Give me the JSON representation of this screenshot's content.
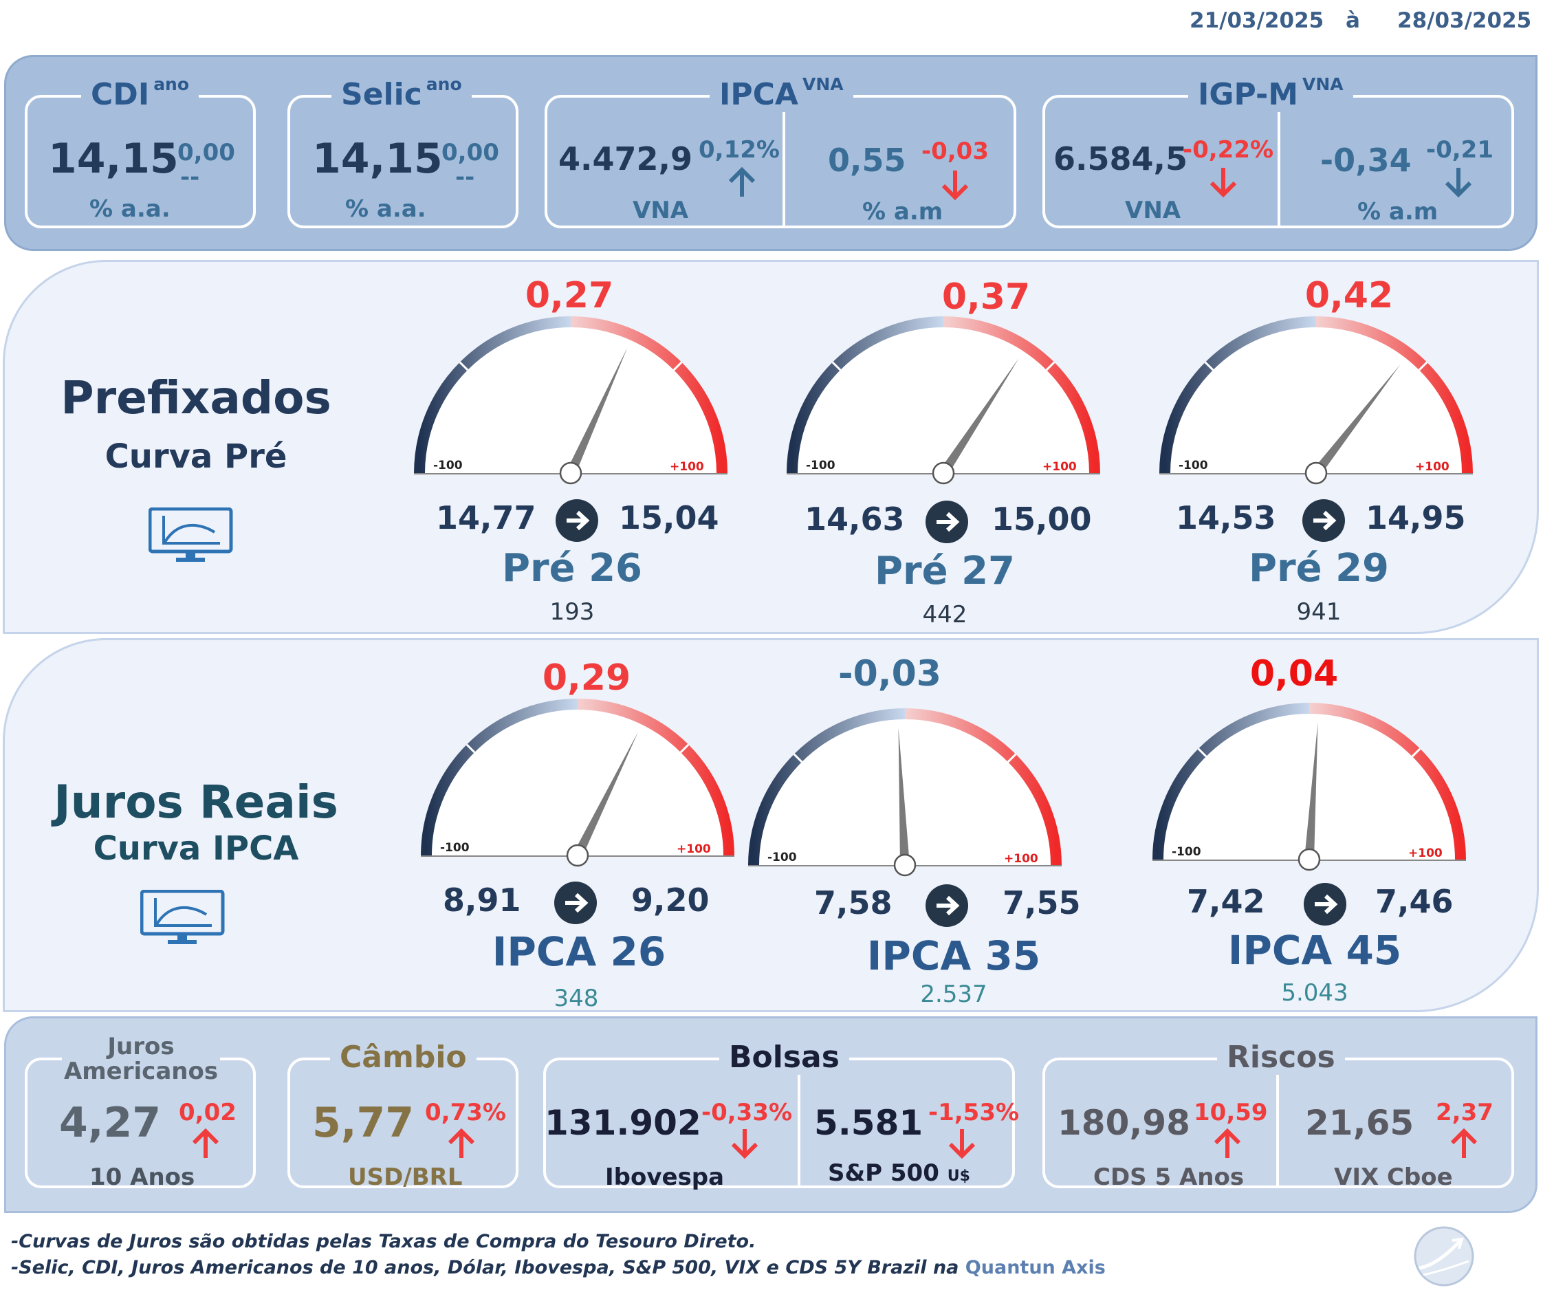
{
  "header": {
    "date_from": "21/03/2025",
    "date_sep": "à",
    "date_to": "28/03/2025"
  },
  "top": {
    "cdi": {
      "label": "CDI",
      "sup": "ano",
      "value": "14,15",
      "change": "0,00",
      "dash": "--",
      "unit": "% a.a."
    },
    "selic": {
      "label": "Selic",
      "sup": "ano",
      "value": "14,15",
      "change": "0,00",
      "dash": "--",
      "unit": "% a.a."
    },
    "ipca": {
      "label": "IPCA",
      "sup": "VNA",
      "vna_value": "4.472,9",
      "vna_change": "0,12%",
      "vna_label": "VNA",
      "am_value": "0,55",
      "am_change": "-0,03",
      "am_label": "% a.m"
    },
    "igpm": {
      "label": "IGP-M",
      "sup": "VNA",
      "vna_value": "6.584,5",
      "vna_change": "-0,22%",
      "vna_label": "VNA",
      "am_value": "-0,34",
      "am_change": "-0,21",
      "am_label": "% a.m"
    }
  },
  "prefixados": {
    "title": "Prefixados",
    "subtitle": "Curva Pré",
    "icon": "monitor-chart-icon",
    "gauges": [
      {
        "delta": "0,27",
        "delta_value": 0.27,
        "from": "14,77",
        "to": "15,04",
        "name": "Pré 26",
        "count": "193",
        "min": "-100",
        "max": "+100"
      },
      {
        "delta": "0,37",
        "delta_value": 0.37,
        "from": "14,63",
        "to": "15,00",
        "name": "Pré 27",
        "count": "442",
        "min": "-100",
        "max": "+100"
      },
      {
        "delta": "0,42",
        "delta_value": 0.42,
        "from": "14,53",
        "to": "14,95",
        "name": "Pré 29",
        "count": "941",
        "min": "-100",
        "max": "+100"
      }
    ]
  },
  "juros_reais": {
    "title": "Juros Reais",
    "subtitle": "Curva IPCA",
    "icon": "monitor-chart-icon",
    "gauges": [
      {
        "delta": "0,29",
        "delta_value": 0.29,
        "from": "8,91",
        "to": "9,20",
        "name": "IPCA 26",
        "count": "348",
        "min": "-100",
        "max": "+100"
      },
      {
        "delta": "-0,03",
        "delta_value": -0.03,
        "from": "7,58",
        "to": "7,55",
        "name": "IPCA 35",
        "count": "2.537",
        "min": "-100",
        "max": "+100"
      },
      {
        "delta": "0,04",
        "delta_value": 0.04,
        "from": "7,42",
        "to": "7,46",
        "name": "IPCA 45",
        "count": "5.043",
        "min": "-100",
        "max": "+100"
      }
    ]
  },
  "bottom": {
    "juros_americanos": {
      "label_line1": "Juros",
      "label_line2": "Americanos",
      "value": "4,27",
      "change": "0,02",
      "sub": "10 Anos"
    },
    "cambio": {
      "label": "Câmbio",
      "value": "5,77",
      "change": "0,73%",
      "sub": "USD/BRL"
    },
    "bolsas": {
      "label": "Bolsas",
      "ibov_value": "131.902",
      "ibov_change": "-0,33%",
      "ibov_label": "Ibovespa",
      "sp_value": "5.581",
      "sp_change": "-1,53%",
      "sp_label": "S&P 500",
      "sp_unit": "U$"
    },
    "riscos": {
      "label": "Riscos",
      "cds_value": "180,98",
      "cds_change": "10,59",
      "cds_label": "CDS 5 Anos",
      "vix_value": "21,65",
      "vix_change": "2,37",
      "vix_label": "VIX Cboe"
    }
  },
  "footer": {
    "line1": "-Curvas de Juros são obtidas pelas Taxas de Compra do Tesouro Direto.",
    "line2": "-Selic, CDI, Juros Americanos de 10 anos, Dólar, Ibovespa,  S&P 500, VIX e CDS 5Y Brazil na",
    "source": "Quantun Axis"
  },
  "colors": {
    "up": "#f03c3c",
    "down": "#3b6e96",
    "navy": "#243a5a",
    "gauge_low": "#1e3150",
    "gauge_high": "#f02828"
  }
}
